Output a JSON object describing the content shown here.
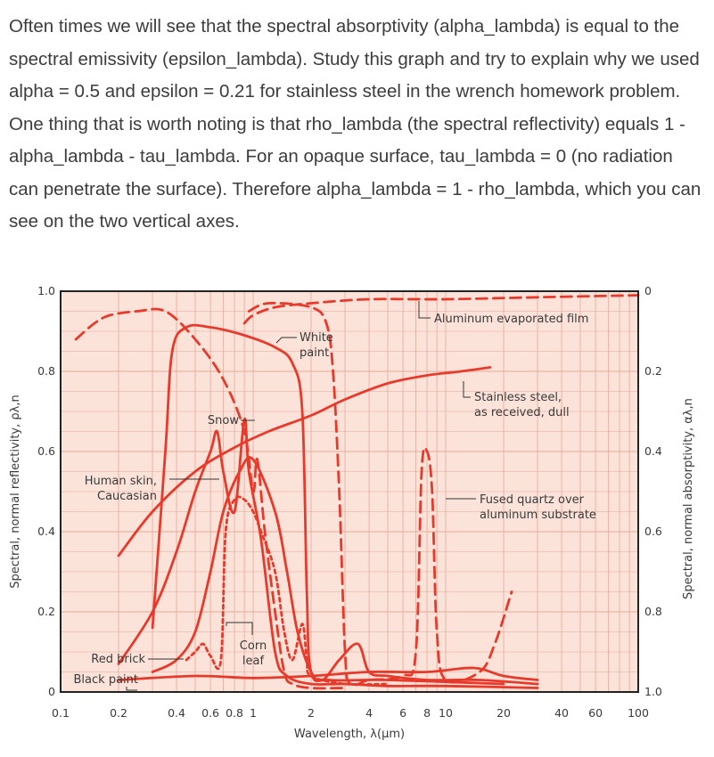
{
  "intro_text": "Often times we will see that the spectral absorptivity (alpha_lambda) is equal to the spectral emissivity (epsilon_lambda). Study this graph and try to explain why we used alpha = 0.5 and epsilon = 0.21 for stainless steel in the wrench homework problem. One thing that is worth noting is that rho_lambda (the spectral reflectivity) equals 1 - alpha_lambda - tau_lambda. For an opaque surface, tau_lambda = 0 (no radiation can penetrate the surface). Therefore alpha_lambda = 1 - rho_lambda, which  you can see on the two vertical axes.",
  "colors": {
    "curve": "#e8392a",
    "plot_bg": "#fbe3da",
    "grid": "#e6a898",
    "frame": "#222222"
  },
  "chart_data": {
    "type": "line",
    "title": "",
    "xlabel": "Wavelength, λ(μm)",
    "ylabel": "Spectral, normal reflectivity, ρλ,n",
    "ylabel_right": "Spectral, normal absorptivity, αλ,n",
    "x_scale": "log",
    "xlim": [
      0.1,
      100
    ],
    "ylim": [
      0,
      1.0
    ],
    "x_ticks": [
      {
        "value": 0.1,
        "label": "0.1"
      },
      {
        "value": 0.2,
        "label": "0.2"
      },
      {
        "value": 0.4,
        "label": "0.4"
      },
      {
        "value": 0.6,
        "label": "0.6"
      },
      {
        "value": 0.8,
        "label": "0.8"
      },
      {
        "value": 1,
        "label": "1"
      },
      {
        "value": 2,
        "label": "2"
      },
      {
        "value": 4,
        "label": "4"
      },
      {
        "value": 6,
        "label": "6"
      },
      {
        "value": 8,
        "label": "8"
      },
      {
        "value": 10,
        "label": "10"
      },
      {
        "value": 20,
        "label": "20"
      },
      {
        "value": 40,
        "label": "40"
      },
      {
        "value": 60,
        "label": "60"
      },
      {
        "value": 100,
        "label": "100"
      }
    ],
    "y_ticks_left": [
      {
        "value": 0,
        "label": "0"
      },
      {
        "value": 0.2,
        "label": "0.2"
      },
      {
        "value": 0.4,
        "label": "0.4"
      },
      {
        "value": 0.6,
        "label": "0.6"
      },
      {
        "value": 0.8,
        "label": "0.8"
      },
      {
        "value": 1.0,
        "label": "1.0"
      }
    ],
    "y_ticks_right": [
      {
        "value": 1.0,
        "label": "0"
      },
      {
        "value": 0.8,
        "label": "0.2"
      },
      {
        "value": 0.6,
        "label": "0.4"
      },
      {
        "value": 0.4,
        "label": "0.6"
      },
      {
        "value": 0.2,
        "label": "0.8"
      },
      {
        "value": 0,
        "label": "1.0"
      }
    ],
    "grid": true,
    "series": [
      {
        "name": "Aluminum evaporated film",
        "dash": "long",
        "points": [
          [
            0.9,
            0.92
          ],
          [
            1,
            0.94
          ],
          [
            1.3,
            0.96
          ],
          [
            2,
            0.97
          ],
          [
            4,
            0.98
          ],
          [
            10,
            0.98
          ],
          [
            30,
            0.985
          ],
          [
            100,
            0.99
          ]
        ]
      },
      {
        "name": "Stainless steel, as received, dull",
        "dash": "solid",
        "points": [
          [
            0.2,
            0.34
          ],
          [
            0.3,
            0.45
          ],
          [
            0.5,
            0.55
          ],
          [
            0.8,
            0.61
          ],
          [
            1.2,
            0.65
          ],
          [
            2,
            0.69
          ],
          [
            3,
            0.73
          ],
          [
            5,
            0.77
          ],
          [
            8,
            0.79
          ],
          [
            12,
            0.8
          ],
          [
            17,
            0.81
          ]
        ]
      },
      {
        "name": "White paint",
        "dash": "solid",
        "points": [
          [
            0.3,
            0.16
          ],
          [
            0.35,
            0.6
          ],
          [
            0.38,
            0.85
          ],
          [
            0.45,
            0.91
          ],
          [
            0.6,
            0.91
          ],
          [
            0.9,
            0.89
          ],
          [
            1.3,
            0.86
          ],
          [
            1.6,
            0.82
          ],
          [
            1.8,
            0.7
          ],
          [
            1.9,
            0.25
          ],
          [
            2,
            0.05
          ],
          [
            2.5,
            0.03
          ],
          [
            5,
            0.03
          ],
          [
            20,
            0.02
          ]
        ]
      },
      {
        "name": "Snow",
        "dash": "long",
        "points": [
          [
            0.12,
            0.88
          ],
          [
            0.15,
            0.92
          ],
          [
            0.18,
            0.94
          ],
          [
            0.25,
            0.95
          ],
          [
            0.35,
            0.95
          ],
          [
            0.5,
            0.88
          ],
          [
            0.7,
            0.78
          ],
          [
            0.9,
            0.65
          ],
          [
            1.0,
            0.5
          ],
          [
            1.05,
            0.58
          ],
          [
            1.15,
            0.4
          ],
          [
            1.3,
            0.2
          ],
          [
            1.45,
            0.05
          ],
          [
            1.6,
            0.02
          ],
          [
            2,
            0.01
          ],
          [
            3,
            0.01
          ]
        ]
      },
      {
        "name": "Fused quartz over aluminum substrate",
        "dash": "long",
        "points": [
          [
            0.95,
            0.95
          ],
          [
            1.2,
            0.97
          ],
          [
            2,
            0.96
          ],
          [
            2.4,
            0.92
          ],
          [
            2.6,
            0.8
          ],
          [
            2.8,
            0.5
          ],
          [
            3,
            0.1
          ],
          [
            3.2,
            0.02
          ],
          [
            4,
            0.03
          ],
          [
            6,
            0.04
          ],
          [
            7,
            0.1
          ],
          [
            7.5,
            0.55
          ],
          [
            8,
            0.6
          ],
          [
            8.5,
            0.5
          ],
          [
            9,
            0.15
          ],
          [
            10,
            0.03
          ],
          [
            15,
            0.05
          ],
          [
            18,
            0.12
          ],
          [
            22,
            0.25
          ]
        ]
      },
      {
        "name": "Human skin, Caucasian",
        "dash": "solid",
        "points": [
          [
            0.2,
            0.07
          ],
          [
            0.3,
            0.2
          ],
          [
            0.4,
            0.35
          ],
          [
            0.5,
            0.5
          ],
          [
            0.6,
            0.6
          ],
          [
            0.65,
            0.65
          ],
          [
            0.7,
            0.55
          ],
          [
            0.8,
            0.45
          ],
          [
            0.9,
            0.68
          ],
          [
            0.95,
            0.55
          ],
          [
            1.1,
            0.38
          ],
          [
            1.3,
            0.1
          ],
          [
            1.5,
            0.04
          ],
          [
            2,
            0.02
          ],
          [
            3,
            0.02
          ],
          [
            5,
            0.015
          ],
          [
            10,
            0.015
          ],
          [
            30,
            0.01
          ]
        ]
      },
      {
        "name": "Corn leaf",
        "dash": "short",
        "points": [
          [
            0.45,
            0.08
          ],
          [
            0.5,
            0.1
          ],
          [
            0.55,
            0.12
          ],
          [
            0.6,
            0.09
          ],
          [
            0.68,
            0.08
          ],
          [
            0.72,
            0.4
          ],
          [
            0.8,
            0.48
          ],
          [
            0.9,
            0.48
          ],
          [
            1.0,
            0.45
          ],
          [
            1.1,
            0.4
          ],
          [
            1.3,
            0.3
          ],
          [
            1.45,
            0.15
          ],
          [
            1.6,
            0.08
          ],
          [
            1.8,
            0.17
          ],
          [
            1.9,
            0.08
          ],
          [
            2,
            0.04
          ],
          [
            3,
            0.02
          ],
          [
            5,
            0.02
          ]
        ]
      },
      {
        "name": "Red brick",
        "dash": "solid",
        "points": [
          [
            0.3,
            0.05
          ],
          [
            0.4,
            0.08
          ],
          [
            0.5,
            0.15
          ],
          [
            0.6,
            0.3
          ],
          [
            0.7,
            0.45
          ],
          [
            0.85,
            0.55
          ],
          [
            1,
            0.58
          ],
          [
            1.3,
            0.45
          ],
          [
            1.5,
            0.3
          ],
          [
            1.7,
            0.15
          ],
          [
            2,
            0.05
          ],
          [
            2.3,
            0.03
          ],
          [
            2.8,
            0.08
          ],
          [
            3.5,
            0.12
          ],
          [
            4,
            0.05
          ],
          [
            5,
            0.04
          ],
          [
            8,
            0.03
          ],
          [
            15,
            0.03
          ],
          [
            30,
            0.02
          ]
        ]
      },
      {
        "name": "Black paint",
        "dash": "solid",
        "points": [
          [
            0.2,
            0.03
          ],
          [
            0.5,
            0.04
          ],
          [
            1,
            0.035
          ],
          [
            2,
            0.04
          ],
          [
            4,
            0.05
          ],
          [
            8,
            0.05
          ],
          [
            14,
            0.06
          ],
          [
            20,
            0.04
          ],
          [
            30,
            0.03
          ]
        ]
      }
    ],
    "annotations": [
      {
        "series": "Aluminum evaporated film",
        "lines": [
          "Aluminum evaporated film"
        ]
      },
      {
        "series": "White paint",
        "lines": [
          "White",
          "paint"
        ]
      },
      {
        "series": "Stainless steel, as received, dull",
        "lines": [
          "Stainless steel,",
          "as received, dull"
        ]
      },
      {
        "series": "Snow",
        "lines": [
          "Snow"
        ]
      },
      {
        "series": "Human skin, Caucasian",
        "lines": [
          "Human skin,",
          "Caucasian"
        ]
      },
      {
        "series": "Fused quartz over aluminum substrate",
        "lines": [
          "Fused quartz over",
          "aluminum substrate"
        ]
      },
      {
        "series": "Corn leaf",
        "lines": [
          "Corn",
          "leaf"
        ]
      },
      {
        "series": "Red brick",
        "lines": [
          "Red brick"
        ]
      },
      {
        "series": "Black paint",
        "lines": [
          "Black paint"
        ]
      }
    ]
  }
}
